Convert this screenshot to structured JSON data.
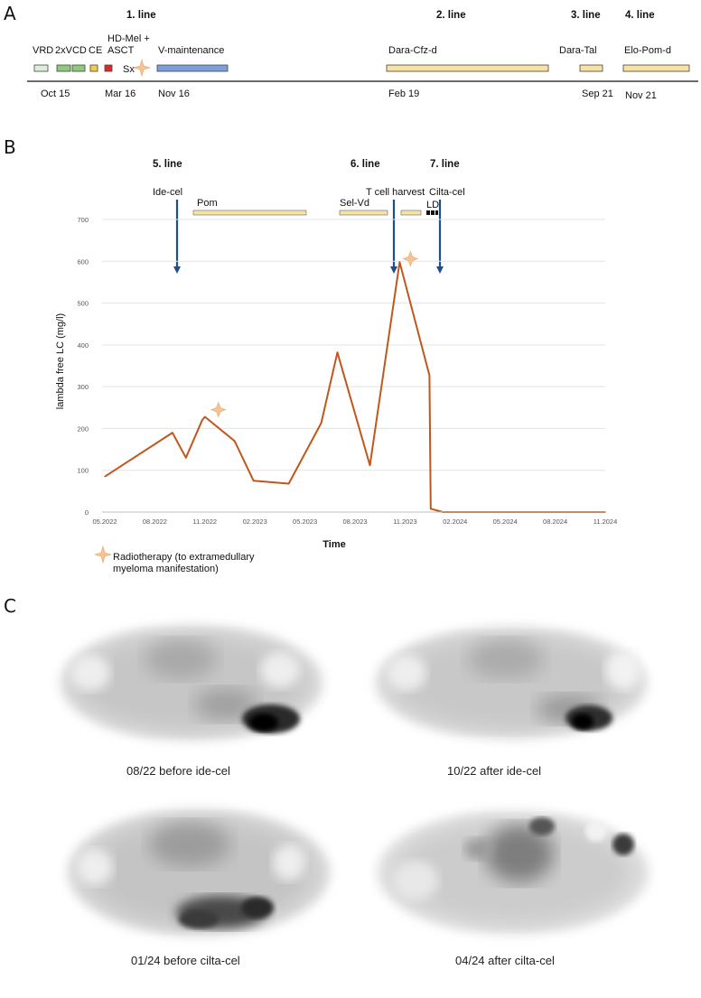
{
  "panels": {
    "a": "A",
    "b": "B",
    "c": "C"
  },
  "timeline": {
    "line_headers": [
      "1. line",
      "2. line",
      "3. line",
      "4. line"
    ],
    "regimens": [
      "VRD",
      "2xVCD",
      "CE",
      "HD-Mel +",
      "ASCT",
      "Sx",
      "V-maintenance",
      "Dara-Cfz-d",
      "Dara-Tal",
      "Elo-Pom-d"
    ],
    "dates": [
      "Oct 15",
      "Mar 16",
      "Nov 16",
      "Feb 19",
      "Sep 21",
      "Nov 21"
    ],
    "colors": {
      "vrd": "#dcefd9",
      "vcd": "#8fc97e",
      "ce": "#f2cc4b",
      "hdmel": "#d92b2b",
      "vmaint": "#7c9fdc",
      "later": "#f6e2a3"
    }
  },
  "chart_header": {
    "line_labels": [
      "5. line",
      "6. line",
      "7. line"
    ],
    "events": [
      "Ide-cel",
      "T cell harvest",
      "Cilta-cel"
    ],
    "therapies": [
      "Pom",
      "Sel-Vd",
      "LD"
    ]
  },
  "chart_data": {
    "type": "line",
    "title": "",
    "xlabel": "Time",
    "ylabel": "lambda free LC (mg/l)",
    "ylim": [
      0,
      700
    ],
    "yticks": [
      "0",
      "100",
      "200",
      "300",
      "400",
      "500",
      "600",
      "700"
    ],
    "xlim": [
      0,
      18.5
    ],
    "xticks": [
      "05.2022",
      "08.2022",
      "11.2022",
      "02.2023",
      "05.2023",
      "08.2023",
      "11.2023",
      "02.2024",
      "05.2024",
      "08.2024",
      "11.2024"
    ],
    "x": [
      0,
      2.5,
      3.0,
      3.6,
      3.7,
      4.8,
      5.5,
      6.8,
      8.0,
      8.6,
      9.8,
      10.9,
      12.0,
      12.05,
      12.5,
      18.5
    ],
    "y": [
      85,
      190,
      130,
      220,
      228,
      170,
      75,
      68,
      213,
      382,
      112,
      598,
      327,
      8,
      0,
      0
    ],
    "line_color": "#c0571d",
    "radiotherapy_markers": [
      {
        "x": 4.2,
        "y": 245
      },
      {
        "x": 11.3,
        "y": 606
      }
    ],
    "legend": "Radiotherapy (to extramedullary myeloma manifestation)",
    "legend_lines": [
      "Radiotherapy (to extramedullary",
      "myeloma manifestation)"
    ]
  },
  "scans": {
    "captions": [
      "08/22 before ide-cel",
      "10/22 after ide-cel",
      "01/24 before cilta-cel",
      "04/24 after cilta-cel"
    ]
  }
}
